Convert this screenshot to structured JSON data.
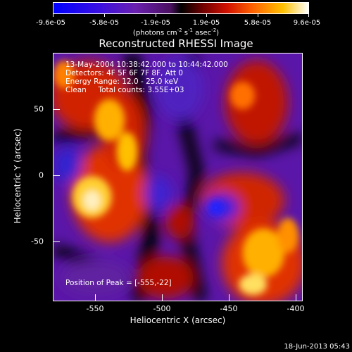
{
  "colorbar": {
    "tick_labels": [
      "-9.6e-05",
      "-5.8e-05",
      "-1.9e-05",
      "1.9e-05",
      "5.8e-05",
      "9.6e-05"
    ],
    "units_main": "(photons cm",
    "units_exp1": "-2",
    "units_mid1": " s",
    "units_exp2": "-1",
    "units_mid2": " asec",
    "units_exp3": "-2",
    "units_end": ")"
  },
  "title": "Reconstructed RHESSI Image",
  "info": {
    "line1": "13-May-2004 10:38:42.000 to 10:44:42.000",
    "line2": "Detectors: 4F 5F 6F 7F 8F, Att 0",
    "line3": "Energy Range: 12.0 - 25.0 keV",
    "line4": "Clean     Total counts: 3.55E+03",
    "peak": "Position of Peak = [-555,-22]"
  },
  "axes": {
    "xlabel": "Heliocentric X (arcsec)",
    "ylabel": "Heliocentric Y (arcsec)",
    "xticks": [
      "-550",
      "-500",
      "-450",
      "-400"
    ],
    "yticks": [
      "50",
      "0",
      "-50"
    ]
  },
  "footer": "18-Jun-2013 05:43"
}
